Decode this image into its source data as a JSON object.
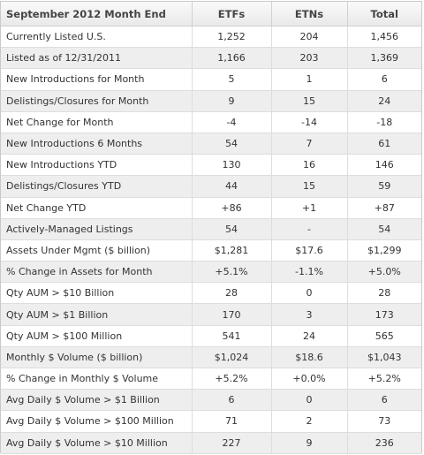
{
  "table": {
    "headers": [
      "September 2012 Month End",
      "ETFs",
      "ETNs",
      "Total"
    ],
    "rows": [
      {
        "label": "Currently Listed U.S.",
        "etfs": "1,252",
        "etns": "204",
        "total": "1,456"
      },
      {
        "label": "Listed as of 12/31/2011",
        "etfs": "1,166",
        "etns": "203",
        "total": "1,369"
      },
      {
        "label": "New Introductions for Month",
        "etfs": "5",
        "etns": "1",
        "total": "6"
      },
      {
        "label": "Delistings/Closures for Month",
        "etfs": "9",
        "etns": "15",
        "total": "24"
      },
      {
        "label": "Net Change for Month",
        "etfs": "-4",
        "etns": "-14",
        "total": "-18"
      },
      {
        "label": "New Introductions 6 Months",
        "etfs": "54",
        "etns": "7",
        "total": "61"
      },
      {
        "label": "New Introductions YTD",
        "etfs": "130",
        "etns": "16",
        "total": "146"
      },
      {
        "label": "Delistings/Closures YTD",
        "etfs": "44",
        "etns": "15",
        "total": "59"
      },
      {
        "label": "Net Change YTD",
        "etfs": "+86",
        "etns": "+1",
        "total": "+87"
      },
      {
        "label": "Actively-Managed Listings",
        "etfs": "54",
        "etns": "-",
        "total": "54"
      },
      {
        "label": "Assets Under Mgmt ($ billion)",
        "etfs": "$1,281",
        "etns": "$17.6",
        "total": "$1,299"
      },
      {
        "label": "% Change in Assets for Month",
        "etfs": "+5.1%",
        "etns": "-1.1%",
        "total": "+5.0%"
      },
      {
        "label": "Qty AUM > $10 Billion",
        "etfs": "28",
        "etns": "0",
        "total": "28"
      },
      {
        "label": "Qty AUM > $1 Billion",
        "etfs": "170",
        "etns": "3",
        "total": "173"
      },
      {
        "label": "Qty AUM > $100 Million",
        "etfs": "541",
        "etns": "24",
        "total": "565"
      },
      {
        "label": "Monthly $ Volume ($ billion)",
        "etfs": "$1,024",
        "etns": "$18.6",
        "total": "$1,043"
      },
      {
        "label": "% Change in Monthly $ Volume",
        "etfs": "+5.2%",
        "etns": "+0.0%",
        "total": "+5.2%"
      },
      {
        "label": "Avg Daily $ Volume > $1 Billion",
        "etfs": "6",
        "etns": "0",
        "total": "6"
      },
      {
        "label": "Avg Daily $ Volume > $100 Million",
        "etfs": "71",
        "etns": "2",
        "total": "73"
      },
      {
        "label": "Avg Daily $ Volume > $10 Million",
        "etfs": "227",
        "etns": "9",
        "total": "236"
      }
    ]
  }
}
